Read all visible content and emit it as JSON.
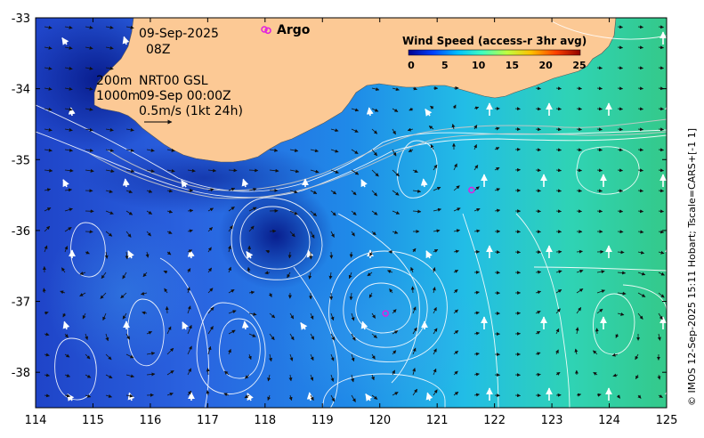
{
  "map": {
    "date": "09-Sep-2025",
    "time": "08Z",
    "isobath_labels": [
      "200m",
      "1000m"
    ],
    "product": "NRT00 GSL",
    "product_time": "09-Sep 00:00Z",
    "velocity_scale": "0.5m/s (1kt 24h)",
    "argo_label": "Argo",
    "credit": "© IMOS 12-Sep-2025 15:11 Hobart; Tscale=CARS+[-1 1]",
    "colorbar": {
      "title": "Wind Speed (access-r 3hr avg)",
      "ticks": [
        "0",
        "5",
        "10",
        "15",
        "20",
        "25"
      ],
      "colors": [
        "#00008f",
        "#0040ff",
        "#00bfff",
        "#40ffbf",
        "#bfff40",
        "#ffbf00",
        "#ff4000",
        "#8f0000"
      ]
    },
    "x_axis": {
      "ticks": [
        "114",
        "115",
        "116",
        "117",
        "118",
        "119",
        "120",
        "121",
        "122",
        "123",
        "124",
        "125"
      ],
      "range": [
        114,
        125
      ]
    },
    "y_axis": {
      "ticks": [
        "-33",
        "-34",
        "-35",
        "-36",
        "-37",
        "-38"
      ],
      "range": [
        -38.5,
        -33
      ]
    },
    "argo_floats": [
      {
        "lon": 118.05,
        "lat": -33.18
      },
      {
        "lon": 121.6,
        "lat": -35.43
      },
      {
        "lon": 120.1,
        "lat": -37.17
      }
    ],
    "land_color": "#fcc995"
  }
}
